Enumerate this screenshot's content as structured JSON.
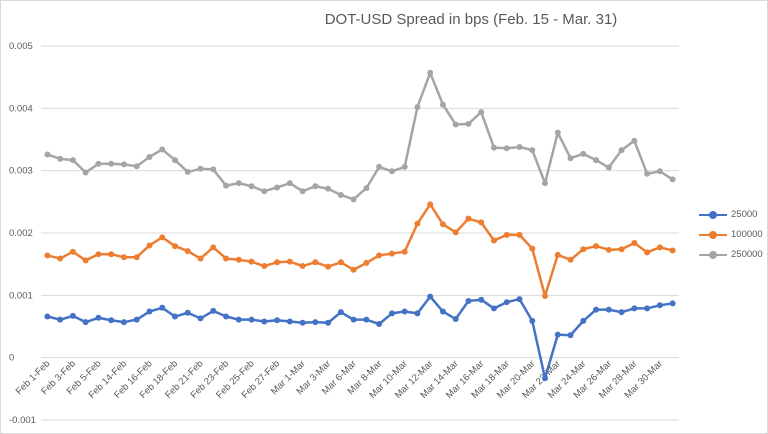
{
  "chart_data": {
    "type": "line",
    "title": "DOT-USD Spread in bps (Feb. 15 - Mar. 31)",
    "xlabel": "",
    "ylabel": "",
    "ylim": [
      -0.001,
      0.005
    ],
    "yticks": [
      "0.005",
      "0.004",
      "0.003",
      "0.002",
      "0.001",
      "0",
      "-0.001"
    ],
    "ytick_values": [
      0.005,
      0.004,
      0.003,
      0.002,
      0.001,
      0,
      -0.001
    ],
    "x_tick_labels": [
      "Feb 1-Feb",
      "Feb 3-Feb",
      "Feb 5-Feb",
      "Feb 14-Feb",
      "Feb 16-Feb",
      "Feb 18-Feb",
      "Feb 21-Feb",
      "Feb 23-Feb",
      "Feb 25-Feb",
      "Feb 27-Feb",
      "Mar 1-Mar",
      "Mar 3-Mar",
      "Mar 6-Mar",
      "Mar 8-Mar",
      "Mar 10-Mar",
      "Mar 12-Mar",
      "Mar 14-Mar",
      "Mar 16-Mar",
      "Mar 18-Mar",
      "Mar 20-Mar",
      "Mar 22-Mar",
      "Mar 24-Mar",
      "Mar 26-Mar",
      "Mar 28-Mar",
      "Mar 30-Mar"
    ],
    "grid": true,
    "legend_position": "right",
    "series": [
      {
        "name": "25000",
        "color": "#4472C4",
        "values": [
          0.00066,
          0.00061,
          0.00067,
          0.00057,
          0.00064,
          0.0006,
          0.00057,
          0.00061,
          0.00074,
          0.0008,
          0.00066,
          0.00072,
          0.00063,
          0.00075,
          0.00066,
          0.00061,
          0.00061,
          0.00058,
          0.0006,
          0.00058,
          0.00056,
          0.00057,
          0.00056,
          0.00073,
          0.00061,
          0.00061,
          0.00054,
          0.00071,
          0.00074,
          0.00071,
          0.00098,
          0.00074,
          0.00062,
          0.00091,
          0.00093,
          0.00079,
          0.00089,
          0.00094,
          0.00059,
          -0.00033,
          0.00037,
          0.00036,
          0.00059,
          0.00077,
          0.00077,
          0.00073,
          0.00079,
          0.00079,
          0.00084,
          0.00087
        ]
      },
      {
        "name": "100000",
        "color": "#ED7D31",
        "values": [
          0.00164,
          0.00159,
          0.0017,
          0.00156,
          0.00166,
          0.00166,
          0.00161,
          0.00161,
          0.0018,
          0.00193,
          0.00179,
          0.00171,
          0.00159,
          0.00177,
          0.00159,
          0.00157,
          0.00154,
          0.00147,
          0.00153,
          0.00154,
          0.00147,
          0.00153,
          0.00146,
          0.00153,
          0.00141,
          0.00152,
          0.00164,
          0.00167,
          0.0017,
          0.00215,
          0.00246,
          0.00214,
          0.00201,
          0.00223,
          0.00217,
          0.00188,
          0.00197,
          0.00197,
          0.00175,
          0.00099,
          0.00165,
          0.00157,
          0.00174,
          0.00179,
          0.00173,
          0.00174,
          0.00184,
          0.00169,
          0.00177,
          0.00172
        ]
      },
      {
        "name": "250000",
        "color": "#A5A5A5",
        "values": [
          0.00326,
          0.00319,
          0.00317,
          0.00297,
          0.00311,
          0.00311,
          0.0031,
          0.00307,
          0.00322,
          0.00334,
          0.00317,
          0.00298,
          0.00303,
          0.00302,
          0.00276,
          0.0028,
          0.00275,
          0.00267,
          0.00273,
          0.0028,
          0.00267,
          0.00275,
          0.00271,
          0.00261,
          0.00254,
          0.00272,
          0.00306,
          0.00299,
          0.00306,
          0.00402,
          0.00457,
          0.00406,
          0.00374,
          0.00375,
          0.00394,
          0.00337,
          0.00336,
          0.00338,
          0.00333,
          0.0028,
          0.00361,
          0.0032,
          0.00327,
          0.00317,
          0.00305,
          0.00333,
          0.00348,
          0.00295,
          0.00299,
          0.00286
        ]
      }
    ]
  }
}
